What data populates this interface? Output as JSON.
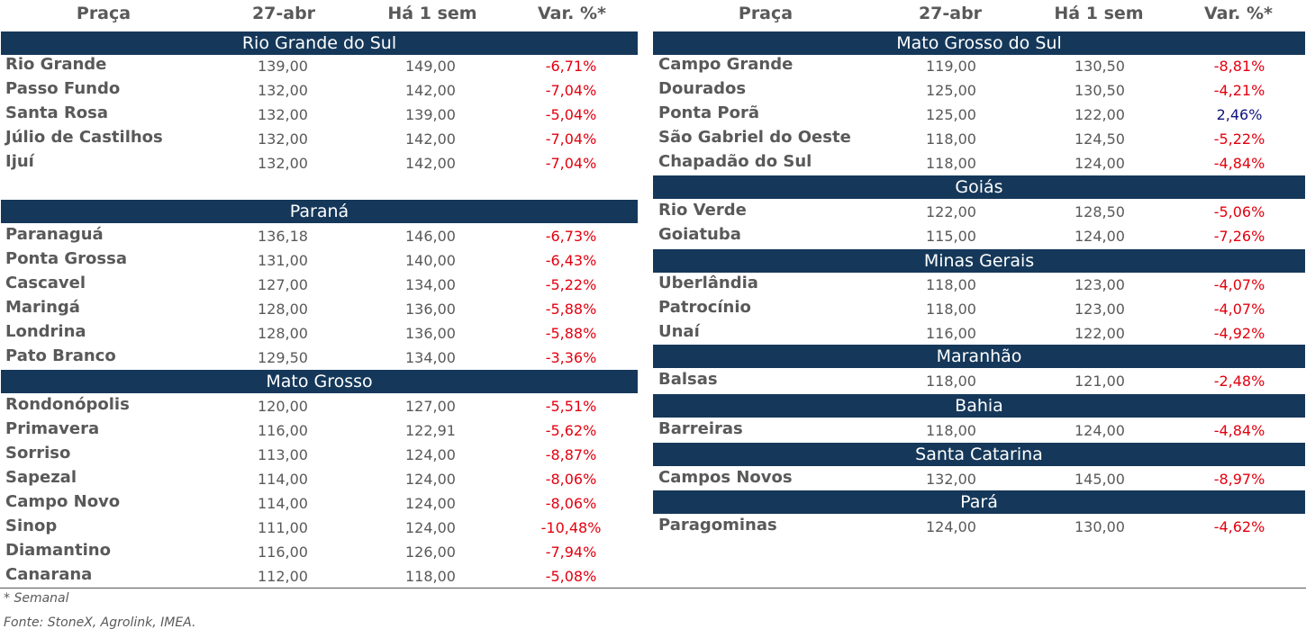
{
  "headers": {
    "praca": "Praça",
    "date": "27-abr",
    "week": "Há 1 sem",
    "var": "Var. %*"
  },
  "colors": {
    "band": "#15385a",
    "negative": "#e3000f",
    "positive": "#10137e"
  },
  "left": [
    {
      "title": "Rio Grande do Sul",
      "rows": [
        {
          "name": "Rio Grande",
          "a": "139,00",
          "b": "149,00",
          "v": "-6,71%"
        },
        {
          "name": "Passo Fundo",
          "a": "132,00",
          "b": "142,00",
          "v": "-7,04%"
        },
        {
          "name": "Santa Rosa",
          "a": "132,00",
          "b": "139,00",
          "v": "-5,04%"
        },
        {
          "name": "Júlio de Castilhos",
          "a": "132,00",
          "b": "142,00",
          "v": "-7,04%"
        },
        {
          "name": "Ijuí",
          "a": "132,00",
          "b": "142,00",
          "v": "-7,04%"
        }
      ]
    },
    {
      "title": "Paraná",
      "rows": [
        {
          "name": "Paranaguá",
          "a": "136,18",
          "b": "146,00",
          "v": "-6,73%"
        },
        {
          "name": "Ponta Grossa",
          "a": "131,00",
          "b": "140,00",
          "v": "-6,43%"
        },
        {
          "name": "Cascavel",
          "a": "127,00",
          "b": "134,00",
          "v": "-5,22%"
        },
        {
          "name": "Maringá",
          "a": "128,00",
          "b": "136,00",
          "v": "-5,88%"
        },
        {
          "name": "Londrina",
          "a": "128,00",
          "b": "136,00",
          "v": "-5,88%"
        },
        {
          "name": "Pato Branco",
          "a": "129,50",
          "b": "134,00",
          "v": "-3,36%"
        }
      ]
    },
    {
      "title": "Mato Grosso",
      "rows": [
        {
          "name": "Rondonópolis",
          "a": "120,00",
          "b": "127,00",
          "v": "-5,51%"
        },
        {
          "name": "Primavera",
          "a": "116,00",
          "b": "122,91",
          "v": "-5,62%"
        },
        {
          "name": "Sorriso",
          "a": "113,00",
          "b": "124,00",
          "v": "-8,87%"
        },
        {
          "name": "Sapezal",
          "a": "114,00",
          "b": "124,00",
          "v": "-8,06%"
        },
        {
          "name": "Campo Novo",
          "a": "114,00",
          "b": "124,00",
          "v": "-8,06%"
        },
        {
          "name": "Sinop",
          "a": "111,00",
          "b": "124,00",
          "v": "-10,48%"
        },
        {
          "name": "Diamantino",
          "a": "116,00",
          "b": "126,00",
          "v": "-7,94%"
        },
        {
          "name": "Canarana",
          "a": "112,00",
          "b": "118,00",
          "v": "-5,08%"
        }
      ]
    }
  ],
  "right": [
    {
      "title": "Mato Grosso do Sul",
      "rows": [
        {
          "name": "Campo Grande",
          "a": "119,00",
          "b": "130,50",
          "v": "-8,81%"
        },
        {
          "name": "Dourados",
          "a": "125,00",
          "b": "130,50",
          "v": "-4,21%"
        },
        {
          "name": "Ponta Porã",
          "a": "125,00",
          "b": "122,00",
          "v": "2,46%"
        },
        {
          "name": "São Gabriel do Oeste",
          "a": "118,00",
          "b": "124,50",
          "v": "-5,22%"
        },
        {
          "name": "Chapadão do Sul",
          "a": "118,00",
          "b": "124,00",
          "v": "-4,84%"
        }
      ]
    },
    {
      "title": "Goiás",
      "rows": [
        {
          "name": "Rio Verde",
          "a": "122,00",
          "b": "128,50",
          "v": "-5,06%"
        },
        {
          "name": "Goiatuba",
          "a": "115,00",
          "b": "124,00",
          "v": "-7,26%"
        }
      ]
    },
    {
      "title": "Minas Gerais",
      "rows": [
        {
          "name": "Uberlândia",
          "a": "118,00",
          "b": "123,00",
          "v": "-4,07%"
        },
        {
          "name": "Patrocínio",
          "a": "118,00",
          "b": "123,00",
          "v": "-4,07%"
        },
        {
          "name": "Unaí",
          "a": "116,00",
          "b": "122,00",
          "v": "-4,92%"
        }
      ]
    },
    {
      "title": "Maranhão",
      "rows": [
        {
          "name": "Balsas",
          "a": "118,00",
          "b": "121,00",
          "v": "-2,48%"
        }
      ]
    },
    {
      "title": "Bahia",
      "rows": [
        {
          "name": "Barreiras",
          "a": "118,00",
          "b": "124,00",
          "v": "-4,84%"
        }
      ]
    },
    {
      "title": "Santa Catarina",
      "rows": [
        {
          "name": "Campos Novos",
          "a": "132,00",
          "b": "145,00",
          "v": "-8,97%"
        }
      ]
    },
    {
      "title": "Pará",
      "rows": [
        {
          "name": "Paragominas",
          "a": "124,00",
          "b": "130,00",
          "v": "-4,62%"
        }
      ]
    }
  ],
  "footnote": "* Semanal",
  "source": "Fonte: StoneX, Agrolink, IMEA."
}
